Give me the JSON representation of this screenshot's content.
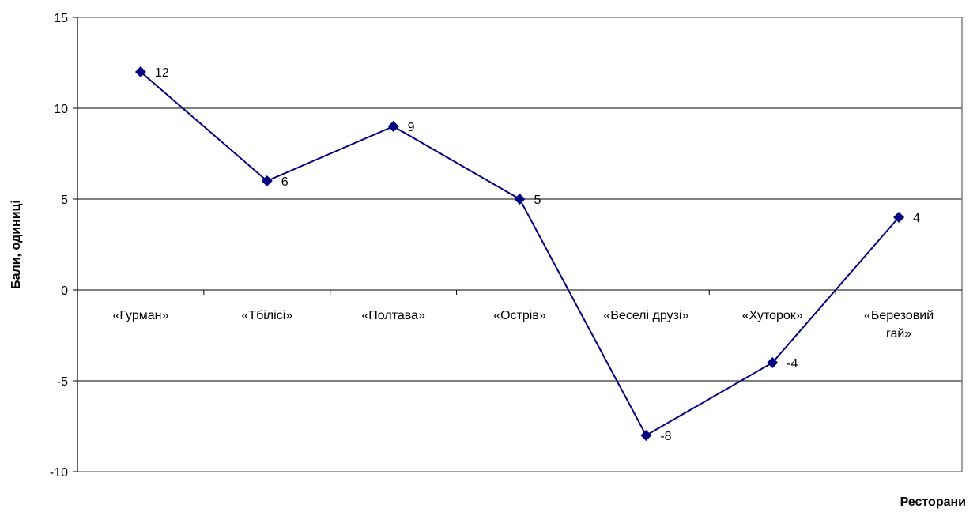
{
  "chart_data": {
    "type": "line",
    "title": "",
    "xlabel": "Ресторани",
    "ylabel": "Бали, одиниці",
    "categories": [
      [
        "«Гурман»"
      ],
      [
        "«Тбілісі»"
      ],
      [
        "«Полтава»"
      ],
      [
        "«Острів»"
      ],
      [
        "«Веселі друзі»"
      ],
      [
        "«Хуторок»"
      ],
      [
        "«Березовий",
        "гай»"
      ]
    ],
    "series": [
      {
        "values": [
          12,
          6,
          9,
          5,
          -8,
          -4,
          4
        ]
      }
    ],
    "data_labels": [
      "12",
      "6",
      "9",
      "5",
      "-8",
      "-4",
      "4"
    ],
    "ylim": [
      -10,
      15
    ],
    "yticks": [
      -10,
      -5,
      0,
      5,
      10,
      15
    ],
    "grid": "horizontal",
    "legend": "none",
    "colors": {
      "line": "#000080",
      "marker": "#000080",
      "gridline": "#000000",
      "plot_border": "#808080"
    },
    "marker": "diamond-icon"
  }
}
